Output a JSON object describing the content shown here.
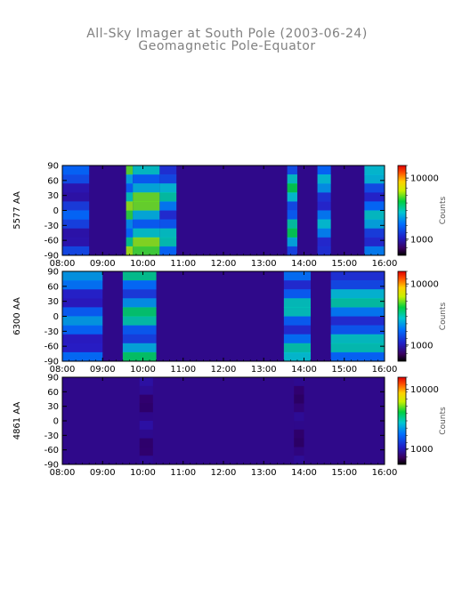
{
  "title": "All-Sky Imager at South Pole (2003-06-24)",
  "subtitle": "Geomagnetic Pole-Equator",
  "chart_data": [
    {
      "type": "heatmap",
      "panel_label": "5577 AA",
      "x_ticks": [
        "08:00",
        "09:00",
        "10:00",
        "11:00",
        "12:00",
        "13:00",
        "14:00",
        "15:00",
        "16:00"
      ],
      "y_ticks": [
        90,
        60,
        30,
        0,
        -30,
        -60,
        -90
      ],
      "ylim": [
        -90,
        90
      ],
      "xlim": [
        "08:00",
        "16:00"
      ],
      "colorbar": {
        "label": "Counts",
        "ticks": [
          10000,
          1000
        ],
        "tick_labels": [
          "10000",
          "1000"
        ]
      },
      "bright_intervals": [
        {
          "start": "08:00",
          "end": "08:40",
          "level": 0.38
        },
        {
          "start": "09:35",
          "end": "09:45",
          "level": 0.72
        },
        {
          "start": "09:45",
          "end": "10:25",
          "level": 0.72
        },
        {
          "start": "10:25",
          "end": "10:50",
          "level": 0.55
        },
        {
          "start": "13:35",
          "end": "13:50",
          "level": 0.62
        },
        {
          "start": "14:20",
          "end": "14:40",
          "level": 0.5
        },
        {
          "start": "15:30",
          "end": "16:00",
          "level": 0.52
        }
      ]
    },
    {
      "type": "heatmap",
      "panel_label": "6300 AA",
      "x_ticks": [
        "08:00",
        "09:00",
        "10:00",
        "11:00",
        "12:00",
        "13:00",
        "14:00",
        "15:00",
        "16:00"
      ],
      "y_ticks": [
        90,
        60,
        30,
        0,
        -30,
        -60,
        -90
      ],
      "ylim": [
        -90,
        90
      ],
      "xlim": [
        "08:00",
        "16:00"
      ],
      "colorbar": {
        "label": "Counts",
        "ticks": [
          10000,
          1000
        ],
        "tick_labels": [
          "10000",
          "1000"
        ]
      },
      "bright_intervals": [
        {
          "start": "08:00",
          "end": "09:00",
          "level": 0.45
        },
        {
          "start": "09:30",
          "end": "10:20",
          "level": 0.6
        },
        {
          "start": "13:30",
          "end": "14:10",
          "level": 0.55
        },
        {
          "start": "14:40",
          "end": "16:00",
          "level": 0.55
        }
      ]
    },
    {
      "type": "heatmap",
      "panel_label": "4861 AA",
      "x_ticks": [
        "08:00",
        "09:00",
        "10:00",
        "11:00",
        "12:00",
        "13:00",
        "14:00",
        "15:00",
        "16:00"
      ],
      "y_ticks": [
        90,
        60,
        30,
        0,
        -30,
        -60,
        -90
      ],
      "ylim": [
        -90,
        90
      ],
      "xlim": [
        "08:00",
        "16:00"
      ],
      "colorbar": {
        "label": "Counts",
        "ticks": [
          10000,
          1000
        ],
        "tick_labels": [
          "10000",
          "1000"
        ]
      },
      "bright_intervals": [
        {
          "start": "09:55",
          "end": "10:15",
          "level": 0.2
        },
        {
          "start": "13:45",
          "end": "14:00",
          "level": 0.18
        }
      ]
    }
  ]
}
